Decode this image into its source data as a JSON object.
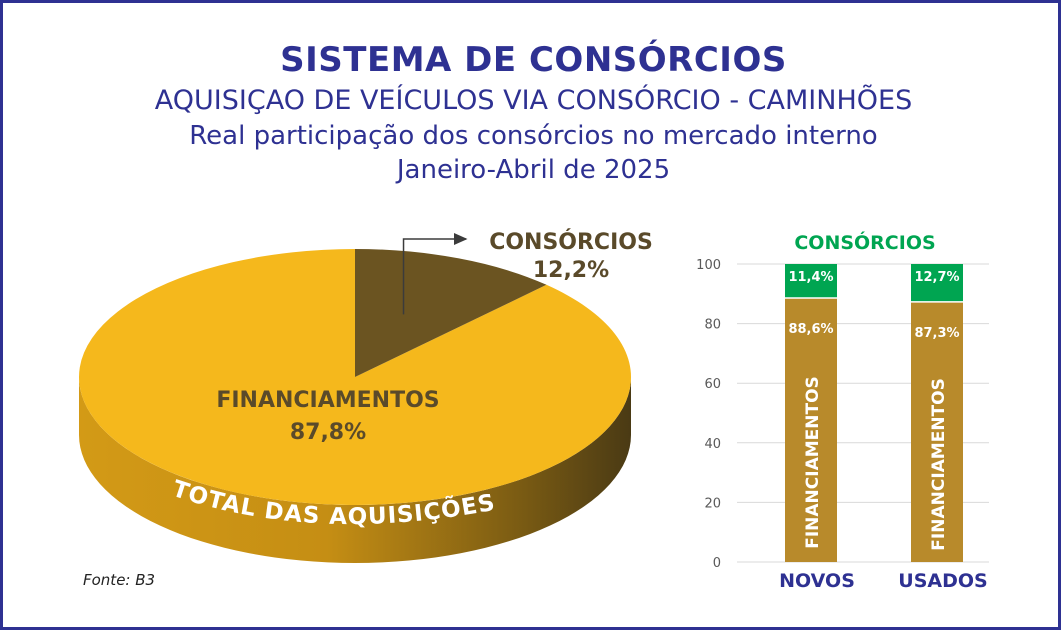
{
  "header": {
    "title": "SISTEMA DE CONSÓRCIOS",
    "subtitle": "AQUISIÇAO DE VEÍCULOS VIA CONSÓRCIO - CAMINHÕES",
    "line3": "Real participação dos consórcios no mercado interno",
    "period": "Janeiro-Abril de 2025"
  },
  "source": "Fonte: B3",
  "colors": {
    "frame": "#2e3192",
    "financiamentos_pie": "#f5b81c",
    "consorcios_pie": "#6b5421",
    "financiamentos_bar": "#b88a2b",
    "consorcios_bar": "#00a551"
  },
  "chart_data": [
    {
      "type": "pie",
      "caption": "TOTAL DAS AQUISIÇÕES",
      "slices": [
        {
          "label": "FINANCIAMENTOS",
          "value": 87.8,
          "value_label": "87,8%"
        },
        {
          "label": "CONSÓRCIOS",
          "value": 12.2,
          "value_label": "12,2%"
        }
      ]
    },
    {
      "type": "bar",
      "stacked": true,
      "title": "CONSÓRCIOS",
      "categories": [
        "NOVOS",
        "USADOS"
      ],
      "ylim": [
        0,
        100
      ],
      "yticks": [
        "0",
        "20",
        "40",
        "60",
        "80",
        "100"
      ],
      "grid": true,
      "series": [
        {
          "name": "FINANCIAMENTOS",
          "values": [
            88.6,
            87.3
          ],
          "value_labels": [
            "88,6%",
            "87,3%"
          ]
        },
        {
          "name": "CONSÓRCIOS",
          "values": [
            11.4,
            12.7
          ],
          "value_labels": [
            "11,4%",
            "12,7%"
          ]
        }
      ]
    }
  ]
}
